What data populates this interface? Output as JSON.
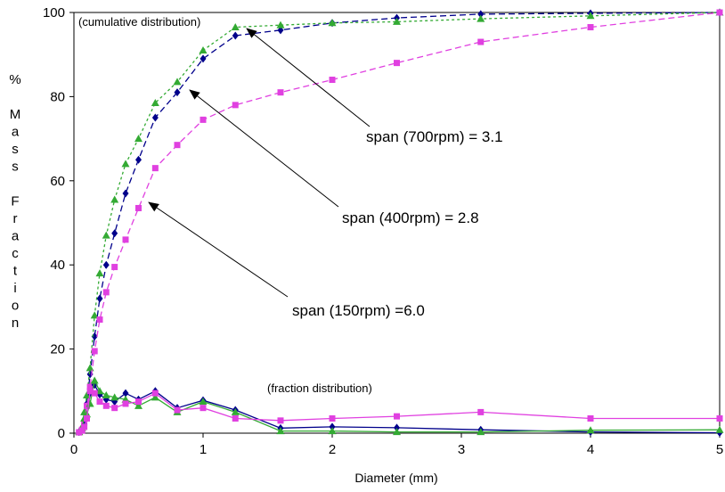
{
  "chart_data": {
    "type": "line",
    "xlabel": "Diameter (mm)",
    "ylabel": "% Mass Fraction",
    "xlim": [
      0,
      5
    ],
    "ylim": [
      0,
      100
    ],
    "xticks": [
      "0",
      "1",
      "2",
      "3",
      "4",
      "5"
    ],
    "yticks": [
      "0",
      "20",
      "40",
      "60",
      "80",
      "100"
    ],
    "grid": false,
    "notes": {
      "cumulative": "(cumulative distribution)",
      "fraction": "(fraction distribution)"
    },
    "annotations": [
      {
        "text": "span (700rpm) = 3.1",
        "arrow_to": [
          1.28,
          96.5
        ]
      },
      {
        "text": "span (400rpm) = 2.8",
        "arrow_to": [
          0.93,
          81.5
        ]
      },
      {
        "text": "span (150rpm) =6.0",
        "arrow_to": [
          0.61,
          54.5
        ]
      }
    ],
    "series": [
      {
        "group": "cumulative",
        "color": "#00008b",
        "marker": "diamond",
        "dash": "dashed",
        "x": [
          0.04,
          0.063,
          0.08,
          0.1,
          0.125,
          0.16,
          0.2,
          0.25,
          0.315,
          0.4,
          0.5,
          0.63,
          0.8,
          1.0,
          1.25,
          1.6,
          2.0,
          2.5,
          3.15,
          4.0,
          5.0
        ],
        "y": [
          0.3,
          1,
          3,
          7,
          14,
          23,
          32,
          40,
          47.5,
          57,
          65,
          75,
          81,
          89,
          94.5,
          95.8,
          97.5,
          98.7,
          99.6,
          99.8,
          100
        ]
      },
      {
        "group": "cumulative",
        "color": "#33aa33",
        "marker": "triangle",
        "dash": "dotted",
        "x": [
          0.04,
          0.063,
          0.08,
          0.1,
          0.125,
          0.16,
          0.2,
          0.25,
          0.315,
          0.4,
          0.5,
          0.63,
          0.8,
          1.0,
          1.25,
          1.6,
          2.0,
          2.5,
          3.15,
          4.0,
          5.0
        ],
        "y": [
          0.3,
          1.5,
          5,
          9,
          15.5,
          28,
          38,
          47,
          55.5,
          64,
          70,
          78.5,
          83.5,
          91,
          96.5,
          97,
          97.5,
          97.8,
          98.5,
          99.2,
          100
        ]
      },
      {
        "group": "cumulative",
        "color": "#e040e0",
        "marker": "square",
        "dash": "dashed",
        "x": [
          0.04,
          0.063,
          0.08,
          0.1,
          0.125,
          0.16,
          0.2,
          0.25,
          0.315,
          0.4,
          0.5,
          0.63,
          0.8,
          1.0,
          1.25,
          1.6,
          2.0,
          2.5,
          3.15,
          4.0,
          5.0
        ],
        "y": [
          0.2,
          0.8,
          2.5,
          6.5,
          11,
          19.5,
          27,
          33.5,
          39.5,
          46,
          53.5,
          63,
          68.5,
          74.5,
          78,
          81,
          84,
          88,
          93,
          96.5,
          100
        ]
      },
      {
        "group": "fraction",
        "color": "#00008b",
        "marker": "diamond",
        "dash": "solid",
        "x": [
          0.04,
          0.063,
          0.08,
          0.1,
          0.125,
          0.16,
          0.2,
          0.25,
          0.315,
          0.4,
          0.5,
          0.63,
          0.8,
          1.0,
          1.25,
          1.6,
          2.0,
          2.5,
          3.15,
          4.0,
          5.0
        ],
        "y": [
          0.3,
          0.7,
          2,
          4,
          9.5,
          11.5,
          9.2,
          8,
          7.5,
          9.5,
          8,
          10,
          6,
          7.8,
          5.5,
          1.2,
          1.5,
          1.3,
          0.8,
          0.3,
          0.1
        ]
      },
      {
        "group": "fraction",
        "color": "#33aa33",
        "marker": "triangle",
        "dash": "solid",
        "x": [
          0.04,
          0.063,
          0.08,
          0.1,
          0.125,
          0.16,
          0.2,
          0.25,
          0.315,
          0.4,
          0.5,
          0.63,
          0.8,
          1.0,
          1.25,
          1.6,
          2.0,
          2.5,
          3.15,
          4.0,
          5.0
        ],
        "y": [
          0.3,
          1.2,
          3.5,
          4.5,
          7,
          12.5,
          10,
          9,
          8.5,
          8,
          6.5,
          8.5,
          5,
          7.5,
          5,
          0.5,
          0.5,
          0.3,
          0.3,
          0.7,
          0.8
        ]
      },
      {
        "group": "fraction",
        "color": "#e040e0",
        "marker": "square",
        "dash": "solid",
        "x": [
          0.04,
          0.063,
          0.08,
          0.1,
          0.125,
          0.16,
          0.2,
          0.25,
          0.315,
          0.4,
          0.5,
          0.63,
          0.8,
          1.0,
          1.25,
          1.6,
          2.0,
          2.5,
          3.15,
          4.0,
          5.0
        ],
        "y": [
          0.2,
          0.6,
          1.5,
          3.5,
          10,
          9.5,
          7.5,
          6.5,
          6,
          7,
          7.5,
          9.5,
          5.5,
          6,
          3.5,
          3,
          3.5,
          4,
          5,
          3.5,
          3.5
        ]
      }
    ]
  }
}
